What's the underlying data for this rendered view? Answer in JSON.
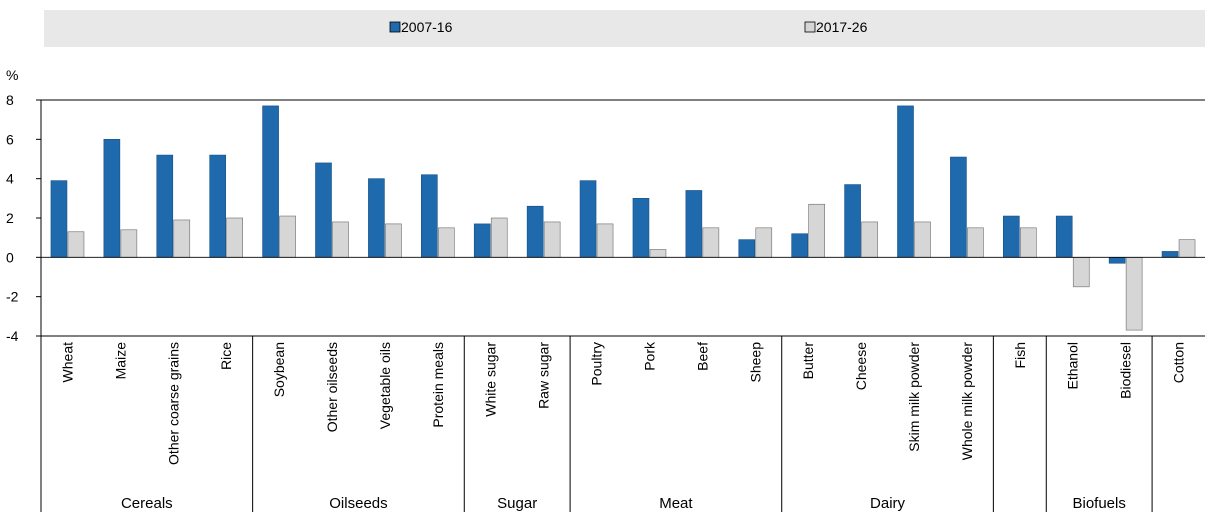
{
  "chart_data": {
    "type": "bar",
    "ylabel": "%",
    "ylim": [
      -4,
      8
    ],
    "yticks": [
      -4,
      -2,
      0,
      2,
      4,
      6,
      8
    ],
    "grid": false,
    "legend_position": "top",
    "categories": [
      "Wheat",
      "Maize",
      "Other coarse grains",
      "Rice",
      "Soybean",
      "Other oilseeds",
      "Vegetable oils",
      "Protein meals",
      "White sugar",
      "Raw sugar",
      "Poultry",
      "Pork",
      "Beef",
      "Sheep",
      "Butter",
      "Cheese",
      "Skim milk powder",
      "Whole milk powder",
      "Fish",
      "Ethanol",
      "Biodiesel",
      "Cotton"
    ],
    "groups": [
      {
        "label": "Cereals",
        "size": 4
      },
      {
        "label": "Oilseeds",
        "size": 4
      },
      {
        "label": "Sugar",
        "size": 2
      },
      {
        "label": "Meat",
        "size": 4
      },
      {
        "label": "Dairy",
        "size": 4
      },
      {
        "label": "",
        "size": 1
      },
      {
        "label": "Biofuels",
        "size": 2
      },
      {
        "label": "",
        "size": 1
      }
    ],
    "series": [
      {
        "name": "2007-16",
        "color": "#1f6aad",
        "values": [
          3.9,
          6.0,
          5.2,
          5.2,
          7.7,
          4.8,
          4.0,
          4.2,
          1.7,
          2.6,
          3.9,
          3.0,
          3.4,
          0.9,
          1.2,
          3.7,
          7.7,
          5.1,
          2.1,
          2.1,
          -0.3,
          0.3
        ]
      },
      {
        "name": "2017-26",
        "color": "#d6d6d6",
        "values": [
          1.3,
          1.4,
          1.9,
          2.0,
          2.1,
          1.8,
          1.7,
          1.5,
          2.0,
          1.8,
          1.7,
          0.4,
          1.5,
          1.5,
          2.7,
          1.8,
          1.8,
          1.5,
          1.5,
          -1.5,
          -3.7,
          0.9
        ]
      }
    ]
  }
}
